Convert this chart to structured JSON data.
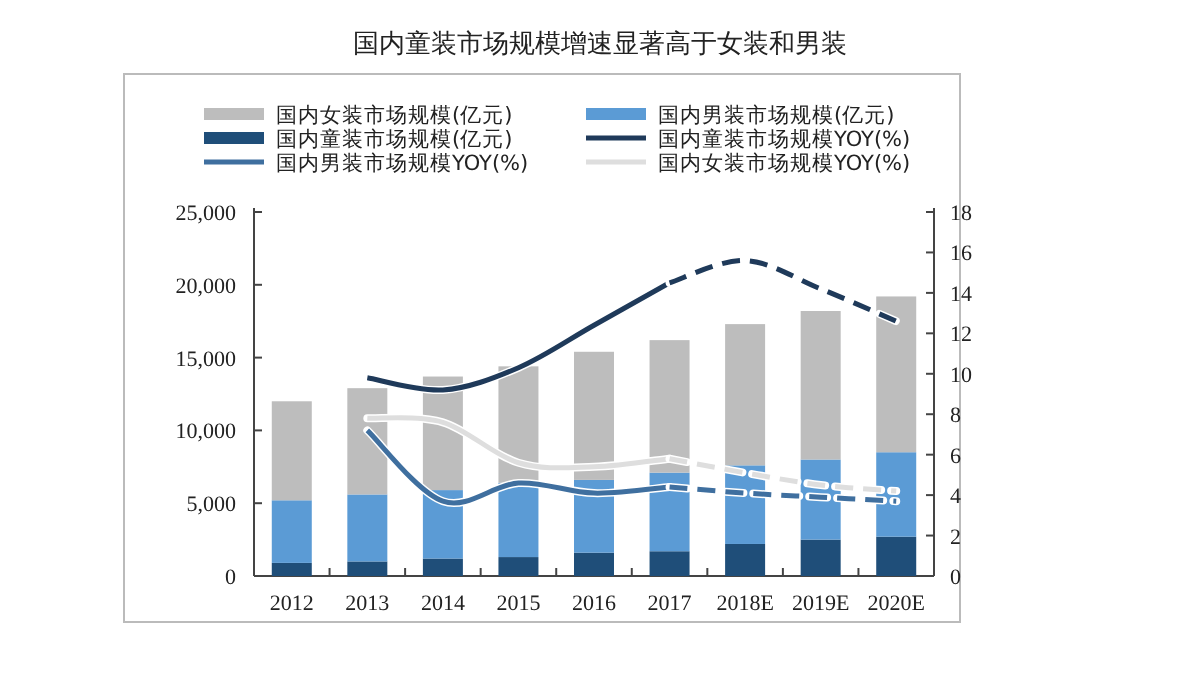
{
  "chart_data": {
    "type": "bar",
    "title": "国内童装市场规模增速显著高于女装和男装",
    "categories": [
      "2012",
      "2013",
      "2014",
      "2015",
      "2016",
      "2017",
      "2018E",
      "2019E",
      "2020E"
    ],
    "series": [
      {
        "name": "国内童装市场规模(亿元)",
        "color": "#1f4e79",
        "values": [
          900,
          1000,
          1200,
          1300,
          1600,
          1700,
          2200,
          2500,
          2700
        ]
      },
      {
        "name": "国内男装市场规模(亿元)",
        "color": "#5b9bd5",
        "values": [
          4300,
          4600,
          4700,
          5100,
          5000,
          5400,
          5400,
          5500,
          5800
        ]
      },
      {
        "name": "国内女装市场规模(亿元)",
        "color": "#bdbdbd",
        "values": [
          6800,
          7300,
          7800,
          8000,
          8800,
          9100,
          9700,
          10200,
          10700
        ]
      },
      {
        "name": "国内童装市场规模YOY(%)",
        "type": "line",
        "axis": "y2",
        "color": "#1f3a5a",
        "line_style": "solid",
        "values": [
          null,
          9.8,
          9.2,
          10.3,
          12.4,
          14.5,
          null,
          null,
          null
        ]
      },
      {
        "name": "国内男装市场规模YOY(%)",
        "type": "line",
        "axis": "y2",
        "color": "#3f6f9f",
        "line_style": "solid",
        "values": [
          null,
          7.2,
          3.7,
          4.6,
          4.1,
          4.4,
          null,
          null,
          null
        ]
      },
      {
        "name": "国内女装市场规模YOY(%)",
        "type": "line",
        "axis": "y2",
        "color": "#dedede",
        "line_style": "solid",
        "values": [
          null,
          7.8,
          7.6,
          5.6,
          5.4,
          5.8,
          null,
          null,
          null
        ]
      },
      {
        "type": "line",
        "axis": "y2",
        "color": "#1f3a5a",
        "line_style": "dashed",
        "values": [
          null,
          null,
          null,
          null,
          null,
          14.5,
          15.6,
          14.2,
          12.6
        ]
      },
      {
        "type": "line",
        "axis": "y2",
        "color": "#3f6f9f",
        "line_style": "dashed",
        "values": [
          null,
          null,
          null,
          null,
          null,
          4.4,
          4.1,
          3.9,
          3.7
        ]
      },
      {
        "type": "line",
        "axis": "y2",
        "color": "#dedede",
        "line_style": "dashed",
        "values": [
          null,
          null,
          null,
          null,
          null,
          5.8,
          5.1,
          4.5,
          4.2
        ]
      }
    ],
    "ylim": [
      0,
      25000
    ],
    "yticks": [
      0,
      {
        "value": 5000,
        "label": "5,000"
      },
      {
        "value": 10000,
        "label": "10,000"
      },
      {
        "value": 15000,
        "label": "15,000"
      },
      {
        "value": 20000,
        "label": "20,000"
      },
      {
        "value": 25000,
        "label": "25,000"
      }
    ],
    "y2lim": [
      0,
      18
    ],
    "y2ticks": [
      0,
      2,
      4,
      6,
      8,
      10,
      12,
      14,
      16,
      18
    ],
    "legend": "top",
    "grid": false,
    "stacked": true
  }
}
